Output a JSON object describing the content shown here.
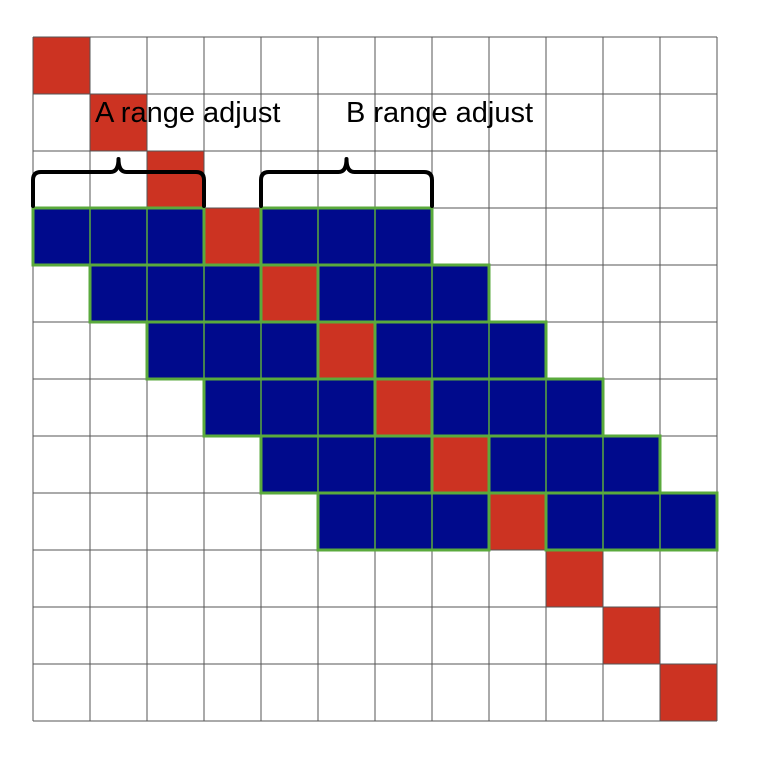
{
  "grid": {
    "rows": 12,
    "cols": 12,
    "diagonal_cells": [
      [
        0,
        0
      ],
      [
        1,
        1
      ],
      [
        2,
        2
      ],
      [
        3,
        3
      ],
      [
        4,
        4
      ],
      [
        5,
        5
      ],
      [
        6,
        6
      ],
      [
        7,
        7
      ],
      [
        8,
        8
      ],
      [
        9,
        9
      ],
      [
        10,
        10
      ],
      [
        11,
        11
      ]
    ],
    "band_segments": [
      {
        "row": 3,
        "from": 0,
        "to": 2
      },
      {
        "row": 3,
        "from": 4,
        "to": 6
      },
      {
        "row": 4,
        "from": 1,
        "to": 3
      },
      {
        "row": 4,
        "from": 5,
        "to": 7
      },
      {
        "row": 5,
        "from": 2,
        "to": 4
      },
      {
        "row": 5,
        "from": 6,
        "to": 8
      },
      {
        "row": 6,
        "from": 3,
        "to": 5
      },
      {
        "row": 6,
        "from": 7,
        "to": 9
      },
      {
        "row": 7,
        "from": 4,
        "to": 6
      },
      {
        "row": 7,
        "from": 8,
        "to": 10
      },
      {
        "row": 8,
        "from": 5,
        "to": 7
      },
      {
        "row": 8,
        "from": 9,
        "to": 11
      }
    ]
  },
  "colors": {
    "diagonal": "#cc3322",
    "band": "#000a8c",
    "band_outline": "#5aaa3c",
    "grid_line": "#555555"
  },
  "labels": {
    "a_range": "A range adjust",
    "b_range": "B range adjust"
  },
  "braces": [
    {
      "name": "a-range-brace",
      "row": 2,
      "from": 0,
      "to": 2
    },
    {
      "name": "b-range-brace",
      "row": 2,
      "from": 4,
      "to": 6
    }
  ]
}
